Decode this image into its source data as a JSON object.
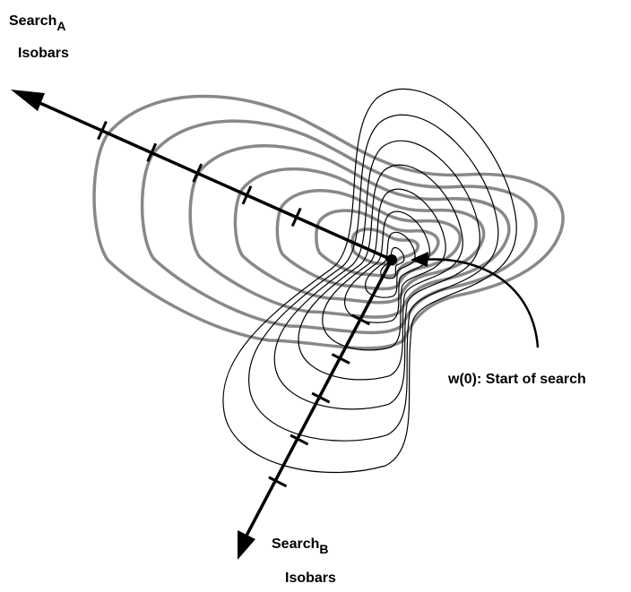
{
  "search_a": {
    "text": "Search",
    "subscript": "A",
    "note": "Isobars"
  },
  "search_b": {
    "text": "Search",
    "subscript": "B",
    "note": "Isobars"
  },
  "start": {
    "label": "w(0): Start of search"
  }
}
